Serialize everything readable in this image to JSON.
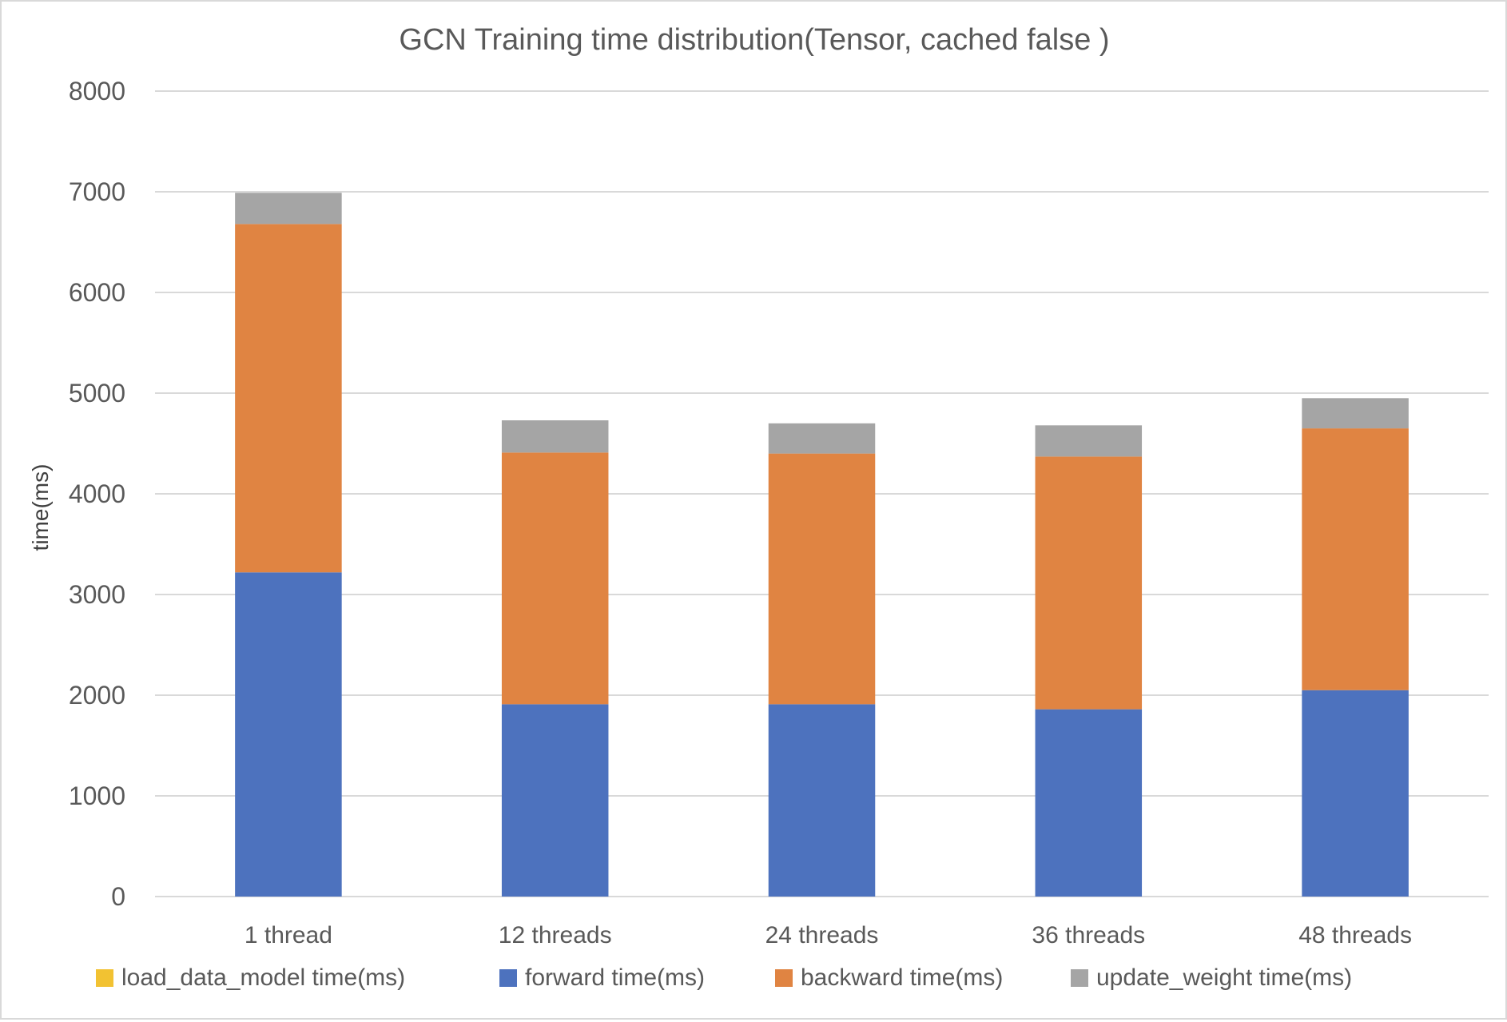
{
  "chart_data": {
    "type": "bar",
    "stacked": true,
    "title": "GCN Training time distribution(Tensor, cached false )",
    "xlabel": "",
    "ylabel": "time(ms)",
    "ylim": [
      0,
      8000
    ],
    "yticks": [
      0,
      1000,
      2000,
      3000,
      4000,
      5000,
      6000,
      7000,
      8000
    ],
    "grid": true,
    "legend_position": "bottom",
    "categories": [
      "1 thread",
      "12 threads",
      "24 threads",
      "36 threads",
      "48 threads"
    ],
    "series": [
      {
        "name": "load_data_model time(ms)",
        "color": "#f2c232",
        "values": [
          0,
          0,
          0,
          0,
          0
        ]
      },
      {
        "name": "forward time(ms)",
        "color": "#4d72be",
        "values": [
          3220,
          1910,
          1910,
          1860,
          2050
        ]
      },
      {
        "name": "backward time(ms)",
        "color": "#e08442",
        "values": [
          3460,
          2500,
          2490,
          2510,
          2600
        ]
      },
      {
        "name": "update_weight time(ms)",
        "color": "#a5a5a5",
        "values": [
          310,
          320,
          300,
          310,
          300
        ]
      }
    ]
  }
}
